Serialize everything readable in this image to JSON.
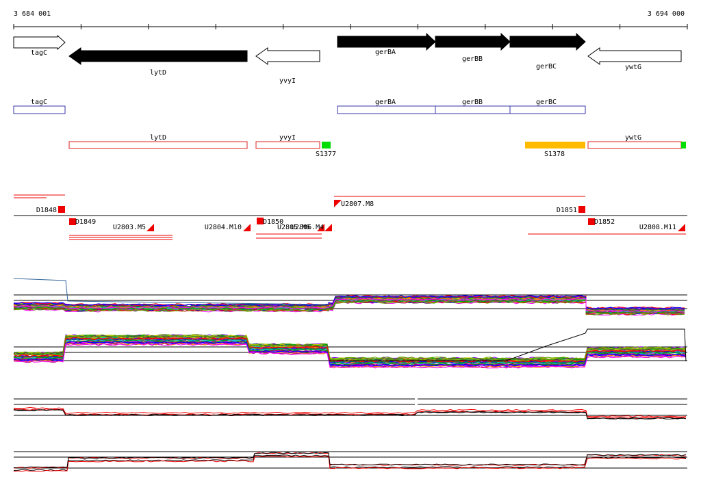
{
  "coords": {
    "start": "3 684 001",
    "end": "3 694 000"
  },
  "genes": [
    {
      "name": "tagC",
      "strand": "+",
      "fill": "white"
    },
    {
      "name": "lytD",
      "strand": "-",
      "fill": "black"
    },
    {
      "name": "yvyI",
      "strand": "-",
      "fill": "white"
    },
    {
      "name": "gerBA",
      "strand": "+",
      "fill": "black"
    },
    {
      "name": "gerBB",
      "strand": "+",
      "fill": "black"
    },
    {
      "name": "gerBC",
      "strand": "+",
      "fill": "black"
    },
    {
      "name": "ywtG",
      "strand": "-",
      "fill": "white"
    }
  ],
  "forward_features": [
    {
      "name": "tagC"
    },
    {
      "name": "gerBA"
    },
    {
      "name": "gerBB"
    },
    {
      "name": "gerBC"
    }
  ],
  "reverse_features": [
    {
      "name": "lytD"
    },
    {
      "name": "yvyI"
    },
    {
      "name": "ywtG"
    }
  ],
  "small_rnas": [
    {
      "name": "S1377",
      "color": "#00dd00"
    },
    {
      "name": "S1378",
      "color": "#ffbb00"
    }
  ],
  "transcription_marks": [
    {
      "name": "D1848"
    },
    {
      "name": "D1849"
    },
    {
      "name": "D1850"
    },
    {
      "name": "D1851"
    },
    {
      "name": "D1852"
    },
    {
      "name": "U2803.M5"
    },
    {
      "name": "U2804.M10"
    },
    {
      "name": "U2805.M6"
    },
    {
      "name": "U2806.M4"
    },
    {
      "name": "U2807.M8"
    },
    {
      "name": "U2808.M11"
    }
  ],
  "colors": {
    "forward_box": "#3333aa",
    "reverse_box": "#dd2222",
    "mark": "#ee0000",
    "axis": "#000000"
  }
}
